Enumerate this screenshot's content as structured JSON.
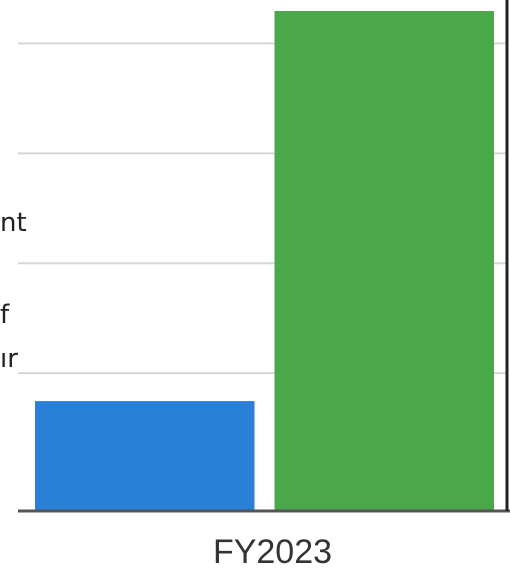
{
  "chart_data": {
    "type": "bar",
    "categories": [
      "FY2023"
    ],
    "series": [
      {
        "values": [
          20
        ],
        "color": "#2a7fd6"
      },
      {
        "values": [
          91
        ],
        "color": "#4aa84a"
      }
    ],
    "ylim": [
      0,
      93
    ],
    "grid": true,
    "legend": "none"
  },
  "side_text_fragments": [
    "nt",
    "f",
    "ır"
  ]
}
